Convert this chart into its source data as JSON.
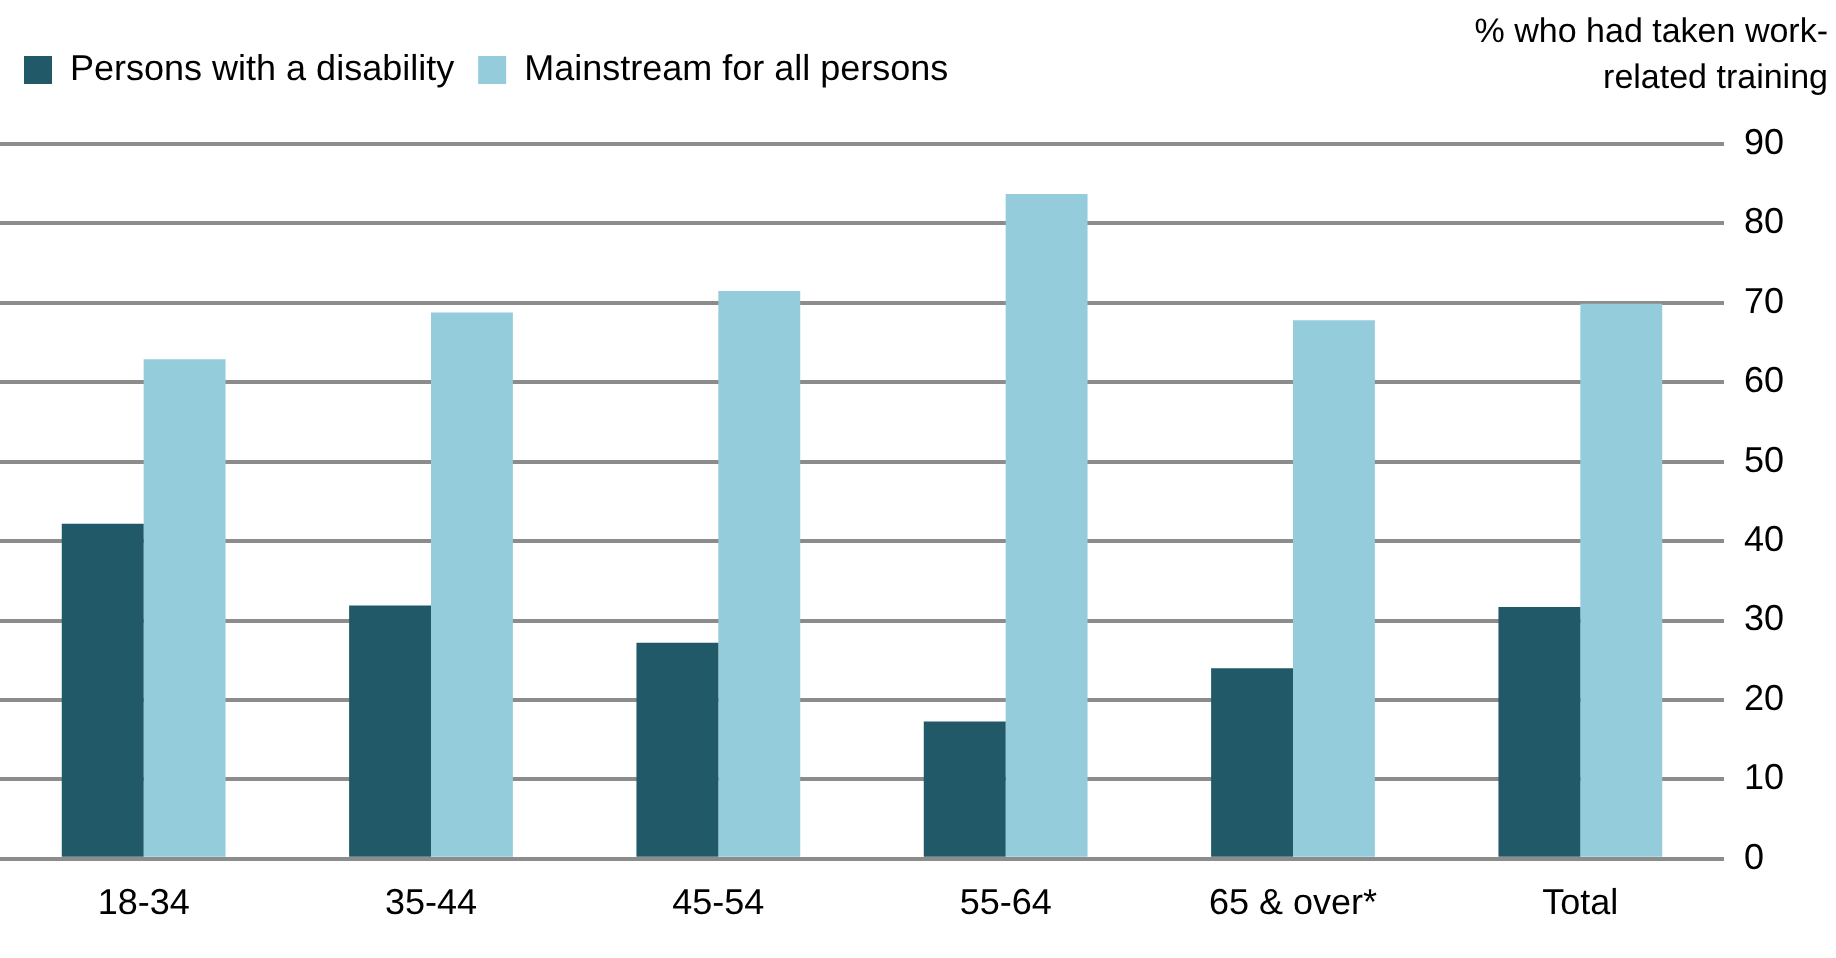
{
  "chart_data": {
    "type": "bar",
    "ylabel": "% who had taken work-related training",
    "categories": [
      "18-34",
      "35-44",
      "45-54",
      "55-64",
      "65 & over*",
      "Total"
    ],
    "series": [
      {
        "name": "Persons with a disability",
        "color": "#225968",
        "values": [
          42.2,
          31.9,
          27.2,
          17.3,
          24.0,
          31.7
        ]
      },
      {
        "name": "Mainstream for all persons",
        "color": "#95ccdc",
        "values": [
          62.9,
          68.8,
          71.5,
          83.7,
          67.8,
          69.9
        ]
      }
    ],
    "ylim": [
      0,
      90
    ],
    "yticks": [
      0,
      10,
      20,
      30,
      40,
      50,
      60,
      70,
      80,
      90
    ],
    "grid": "y",
    "legend": "top left"
  }
}
